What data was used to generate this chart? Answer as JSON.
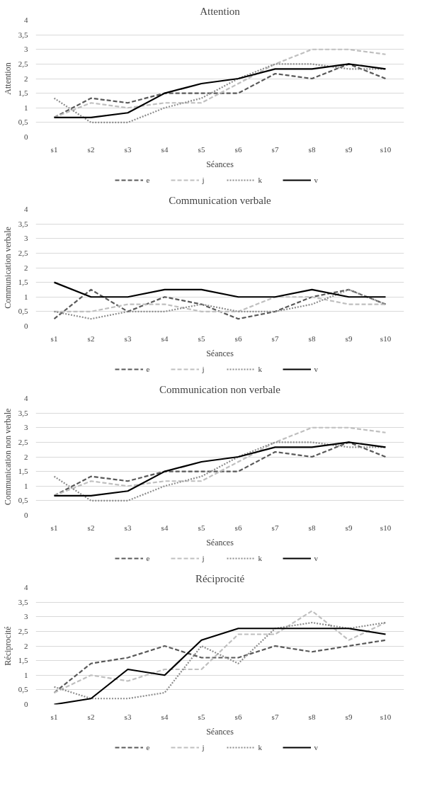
{
  "chart_data": [
    {
      "type": "line",
      "title": "Attention",
      "xlabel": "Séances",
      "ylabel": "Attention",
      "categories": [
        "s1",
        "s2",
        "s3",
        "s4",
        "s5",
        "s6",
        "s7",
        "s8",
        "s9",
        "s10"
      ],
      "ylim": [
        0,
        4
      ],
      "yticks": [
        0,
        {
          "value": 0.5,
          "label": "0,5"
        },
        1,
        {
          "value": 1.5,
          "label": "1,5"
        },
        2,
        {
          "value": 2.5,
          "label": "2,5"
        },
        3,
        {
          "value": 3.5,
          "label": "3,5"
        },
        4
      ],
      "grid": "y",
      "legend": "bottom",
      "series": [
        {
          "name": "e",
          "color": "#595959",
          "line_style": "dashed",
          "values": [
            0.67,
            1.33,
            1.17,
            1.5,
            1.5,
            1.5,
            2.17,
            2,
            2.5,
            2
          ]
        },
        {
          "name": "j",
          "color": "#bfbfbf",
          "line_style": "dashed",
          "values": [
            0.67,
            1.17,
            1,
            1.17,
            1.17,
            1.83,
            2.5,
            3,
            3,
            2.83
          ]
        },
        {
          "name": "k",
          "color": "#8c8c8c",
          "line_style": "dotted",
          "values": [
            1.33,
            0.5,
            0.5,
            1,
            1.33,
            2,
            2.5,
            2.5,
            2.33,
            2.33
          ]
        },
        {
          "name": "v",
          "color": "#000000",
          "line_style": "solid",
          "values": [
            0.67,
            0.67,
            0.83,
            1.5,
            1.83,
            2,
            2.33,
            2.33,
            2.5,
            2.33
          ]
        }
      ]
    },
    {
      "type": "line",
      "title": "Communication verbale",
      "xlabel": "Séances",
      "ylabel": "Communication verbale",
      "categories": [
        "s1",
        "s2",
        "s3",
        "s4",
        "s5",
        "s6",
        "s7",
        "s8",
        "s9",
        "s10"
      ],
      "ylim": [
        0,
        4
      ],
      "yticks": [
        0,
        {
          "value": 0.5,
          "label": "0,5"
        },
        1,
        {
          "value": 1.5,
          "label": "1,5"
        },
        2,
        {
          "value": 2.5,
          "label": "2,5"
        },
        3,
        {
          "value": 3.5,
          "label": "3,5"
        },
        4
      ],
      "grid": "y",
      "legend": "bottom",
      "series": [
        {
          "name": "e",
          "color": "#595959",
          "line_style": "dashed",
          "values": [
            0.25,
            1.25,
            0.5,
            1,
            0.75,
            0.25,
            0.5,
            1,
            1.25,
            0.75
          ]
        },
        {
          "name": "j",
          "color": "#bfbfbf",
          "line_style": "dashed",
          "values": [
            0.5,
            0.5,
            0.75,
            0.75,
            0.5,
            0.5,
            1,
            1,
            0.75,
            0.75
          ]
        },
        {
          "name": "k",
          "color": "#8c8c8c",
          "line_style": "dotted",
          "values": [
            0.5,
            0.25,
            0.5,
            0.5,
            0.75,
            0.5,
            0.5,
            0.75,
            1.25,
            0.75
          ]
        },
        {
          "name": "v",
          "color": "#000000",
          "line_style": "solid",
          "values": [
            1.5,
            1,
            1,
            1.25,
            1.25,
            1,
            1,
            1.25,
            1,
            1
          ]
        }
      ]
    },
    {
      "type": "line",
      "title": "Communication non verbale",
      "xlabel": "Séances",
      "ylabel": "Communication non verbale",
      "categories": [
        "s1",
        "s2",
        "s3",
        "s4",
        "s5",
        "s6",
        "s7",
        "s8",
        "s9",
        "s10"
      ],
      "ylim": [
        0,
        4
      ],
      "yticks": [
        0,
        {
          "value": 0.5,
          "label": "0,5"
        },
        1,
        {
          "value": 1.5,
          "label": "1,5"
        },
        2,
        {
          "value": 2.5,
          "label": "2,5"
        },
        3,
        {
          "value": 3.5,
          "label": "3,5"
        },
        4
      ],
      "grid": "y",
      "legend": "bottom",
      "series": [
        {
          "name": "e",
          "color": "#595959",
          "line_style": "dashed",
          "values": [
            0.67,
            1.33,
            1.17,
            1.5,
            1.5,
            1.5,
            2.17,
            2,
            2.5,
            2
          ]
        },
        {
          "name": "j",
          "color": "#bfbfbf",
          "line_style": "dashed",
          "values": [
            0.67,
            1.17,
            1,
            1.17,
            1.17,
            1.83,
            2.5,
            3,
            3,
            2.83
          ]
        },
        {
          "name": "k",
          "color": "#8c8c8c",
          "line_style": "dotted",
          "values": [
            1.33,
            0.5,
            0.5,
            1,
            1.33,
            2,
            2.5,
            2.5,
            2.33,
            2.33
          ]
        },
        {
          "name": "v",
          "color": "#000000",
          "line_style": "solid",
          "values": [
            0.67,
            0.67,
            0.83,
            1.5,
            1.83,
            2,
            2.33,
            2.33,
            2.5,
            2.33
          ]
        }
      ]
    },
    {
      "type": "line",
      "title": "Réciprocité",
      "xlabel": "Séances",
      "ylabel": "Réciprocité",
      "categories": [
        "s1",
        "s2",
        "s3",
        "s4",
        "s5",
        "s6",
        "s7",
        "s8",
        "s9",
        "s10"
      ],
      "ylim": [
        0,
        4
      ],
      "yticks": [
        0,
        {
          "value": 0.5,
          "label": "0,5"
        },
        1,
        {
          "value": 1.5,
          "label": "1,5"
        },
        2,
        {
          "value": 2.5,
          "label": "2,5"
        },
        3,
        {
          "value": 3.5,
          "label": "3,5"
        },
        4
      ],
      "grid": "y",
      "legend": "bottom",
      "series": [
        {
          "name": "e",
          "color": "#595959",
          "line_style": "dashed",
          "values": [
            0.4,
            1.4,
            1.6,
            2,
            1.6,
            1.6,
            2,
            1.8,
            2,
            2.2
          ]
        },
        {
          "name": "j",
          "color": "#bfbfbf",
          "line_style": "dashed",
          "values": [
            0.4,
            1,
            0.8,
            1.2,
            1.2,
            2.4,
            2.4,
            3.2,
            2.2,
            2.8
          ]
        },
        {
          "name": "k",
          "color": "#8c8c8c",
          "line_style": "dotted",
          "values": [
            0.6,
            0.2,
            0.2,
            0.4,
            2,
            1.4,
            2.6,
            2.8,
            2.6,
            2.8
          ]
        },
        {
          "name": "v",
          "color": "#000000",
          "line_style": "solid",
          "values": [
            0,
            0.2,
            1.2,
            1,
            2.2,
            2.6,
            2.6,
            2.6,
            2.6,
            2.4
          ]
        }
      ]
    }
  ]
}
